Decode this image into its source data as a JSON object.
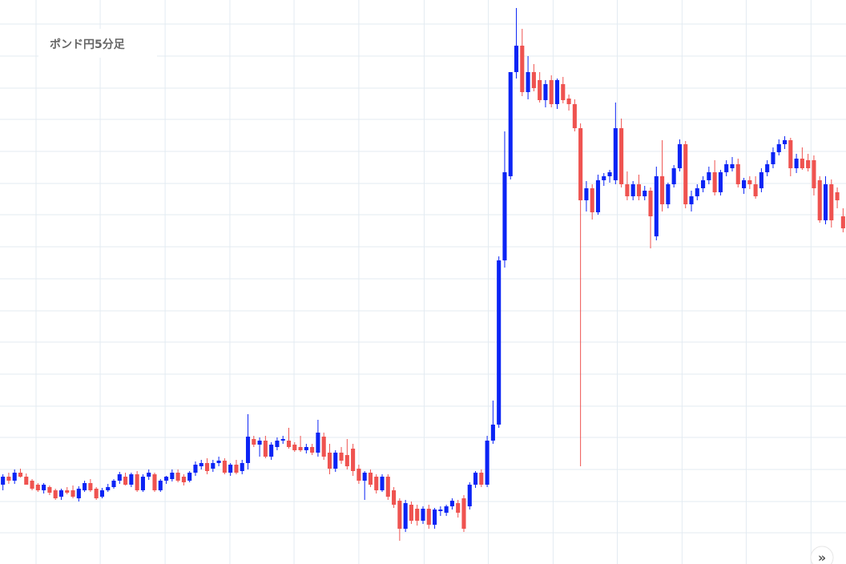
{
  "chart_data": {
    "type": "candlestick",
    "title": "ポンド円5分足",
    "up_color": "#0b24f5",
    "down_color": "#ef5350",
    "grid": true,
    "grid_color": "#e3ebf2",
    "categories": [
      null,
      null,
      null,
      null,
      null,
      null,
      null,
      null,
      null,
      null,
      null,
      null,
      null,
      null,
      null,
      null,
      null,
      null,
      null,
      null,
      null,
      null,
      null,
      null,
      null,
      null,
      null,
      null,
      null,
      null,
      null,
      null,
      null,
      null,
      null,
      null,
      null,
      null,
      null,
      null,
      null,
      null,
      null,
      null,
      null,
      null,
      null,
      null,
      null,
      null,
      null,
      null,
      null,
      null,
      null,
      null,
      null,
      null,
      null,
      null,
      null,
      null,
      null,
      null,
      null,
      null,
      null,
      null,
      null,
      null,
      null,
      null,
      null,
      null,
      null,
      null,
      null,
      null,
      null,
      null,
      null,
      null,
      null,
      null,
      null,
      null,
      null,
      null,
      null,
      null,
      null,
      null,
      null,
      null,
      null,
      null,
      null,
      null,
      null,
      null,
      null,
      null,
      null,
      null,
      null,
      null,
      null,
      null,
      null,
      null,
      null,
      null,
      null,
      null,
      null,
      null,
      null,
      null,
      null,
      null,
      null,
      null,
      null,
      null,
      null,
      null,
      null,
      null,
      null,
      null,
      null,
      null,
      null,
      null,
      null,
      null,
      null,
      null,
      null,
      null,
      null,
      null,
      null,
      null,
      null
    ],
    "open": [
      99,
      109,
      104,
      114,
      109,
      104,
      99,
      92,
      96,
      92,
      84,
      92,
      92,
      82,
      92,
      101,
      94,
      84,
      92,
      96,
      104,
      109,
      99,
      112,
      92,
      109,
      112,
      92,
      104,
      106,
      114,
      109,
      104,
      114,
      122,
      126,
      119,
      126,
      129,
      114,
      124,
      116,
      126,
      156,
      149,
      154,
      134,
      146,
      154,
      154,
      149,
      146,
      142,
      146,
      139,
      159,
      139,
      119,
      139,
      136,
      144,
      119,
      104,
      114,
      109,
      92,
      109,
      92,
      79,
      44,
      74,
      69,
      54,
      69,
      49,
      66,
      64,
      72,
      76,
      82,
      72,
      99,
      114,
      99,
      154,
      174,
      379,
      484,
      614,
      647,
      589,
      614,
      604,
      579,
      604,
      574,
      599,
      581,
      574,
      544,
      454,
      469,
      439,
      479,
      484,
      479,
      544,
      474,
      459,
      474,
      459,
      466,
      409,
      484,
      449,
      474,
      494,
      524,
      449,
      459,
      469,
      479,
      489,
      464,
      489,
      494,
      499,
      469,
      479,
      474,
      469,
      489,
      499,
      514,
      524,
      529,
      494,
      506,
      504,
      504,
      479,
      429,
      474,
      464,
      434
    ],
    "high": [
      112,
      114,
      118,
      119,
      113,
      106,
      101,
      101,
      98,
      94,
      94,
      96,
      98,
      97,
      104,
      106,
      96,
      95,
      100,
      106,
      115,
      114,
      114,
      116,
      112,
      118,
      114,
      106,
      110,
      118,
      118,
      112,
      116,
      128,
      130,
      132,
      130,
      134,
      132,
      126,
      130,
      130,
      187,
      160,
      158,
      160,
      152,
      158,
      160,
      170,
      152,
      160,
      150,
      150,
      180,
      164,
      150,
      142,
      146,
      156,
      150,
      124,
      116,
      118,
      112,
      112,
      112,
      96,
      82,
      80,
      78,
      74,
      72,
      74,
      70,
      72,
      74,
      82,
      80,
      86,
      102,
      116,
      118,
      160,
      204,
      384,
      540,
      614,
      694,
      668,
      634,
      624,
      614,
      604,
      610,
      606,
      608,
      586,
      580,
      550,
      478,
      474,
      486,
      488,
      492,
      576,
      556,
      490,
      478,
      486,
      472,
      470,
      496,
      529,
      476,
      498,
      530,
      528,
      466,
      474,
      484,
      496,
      504,
      492,
      504,
      508,
      506,
      482,
      484,
      484,
      494,
      504,
      520,
      530,
      534,
      532,
      512,
      520,
      512,
      510,
      484,
      484,
      480,
      470,
      444
    ],
    "low": [
      92,
      100,
      100,
      108,
      99,
      92,
      90,
      88,
      86,
      80,
      80,
      87,
      82,
      78,
      90,
      90,
      80,
      82,
      90,
      94,
      100,
      98,
      96,
      90,
      90,
      105,
      90,
      90,
      100,
      103,
      102,
      98,
      102,
      110,
      118,
      112,
      115,
      122,
      112,
      110,
      112,
      112,
      118,
      146,
      134,
      132,
      130,
      142,
      150,
      144,
      140,
      140,
      138,
      136,
      134,
      130,
      112,
      115,
      125,
      118,
      110,
      100,
      80,
      96,
      88,
      90,
      80,
      70,
      29,
      40,
      50,
      48,
      50,
      44,
      44,
      60,
      60,
      68,
      58,
      40,
      68,
      95,
      96,
      96,
      150,
      170,
      370,
      480,
      606,
      584,
      580,
      590,
      576,
      570,
      570,
      568,
      575,
      566,
      540,
      122,
      440,
      430,
      436,
      472,
      476,
      474,
      470,
      454,
      454,
      454,
      454,
      394,
      404,
      440,
      444,
      470,
      490,
      444,
      440,
      454,
      464,
      474,
      460,
      460,
      484,
      490,
      470,
      462,
      468,
      456,
      464,
      484,
      494,
      510,
      518,
      484,
      488,
      492,
      490,
      460,
      426,
      424,
      420,
      444,
      414
    ],
    "close": [
      109,
      104,
      114,
      109,
      99,
      94,
      92,
      99,
      89,
      82,
      92,
      89,
      84,
      94,
      101,
      92,
      82,
      92,
      96,
      104,
      112,
      99,
      112,
      92,
      109,
      114,
      92,
      104,
      109,
      114,
      104,
      102,
      114,
      124,
      126,
      116,
      126,
      129,
      114,
      124,
      114,
      126,
      159,
      149,
      154,
      134,
      149,
      154,
      156,
      146,
      142,
      142,
      146,
      139,
      164,
      134,
      119,
      139,
      129,
      122,
      116,
      104,
      114,
      99,
      92,
      109,
      84,
      74,
      44,
      76,
      54,
      54,
      69,
      49,
      68,
      68,
      72,
      79,
      64,
      44,
      99,
      114,
      99,
      154,
      174,
      379,
      489,
      614,
      647,
      589,
      614,
      594,
      579,
      599,
      574,
      604,
      579,
      574,
      544,
      454,
      469,
      439,
      479,
      484,
      489,
      544,
      474,
      459,
      474,
      459,
      466,
      434,
      484,
      449,
      474,
      494,
      524,
      449,
      459,
      469,
      479,
      489,
      464,
      489,
      499,
      499,
      474,
      479,
      474,
      459,
      489,
      499,
      514,
      524,
      529,
      494,
      506,
      494,
      494,
      469,
      429,
      474,
      429,
      454,
      419
    ],
    "ylim": [
      0,
      704
    ],
    "yticks": [
      39,
      78,
      118,
      158,
      197,
      237,
      277,
      316,
      356,
      396,
      436,
      475,
      515,
      555,
      594,
      634,
      674
    ],
    "xticks": [
      5.68,
      16.67,
      27.8,
      38.9,
      49.9,
      61.0,
      72.2,
      83.2,
      94.3,
      105.3,
      116.4,
      127.4,
      138.5
    ]
  },
  "button": "»"
}
